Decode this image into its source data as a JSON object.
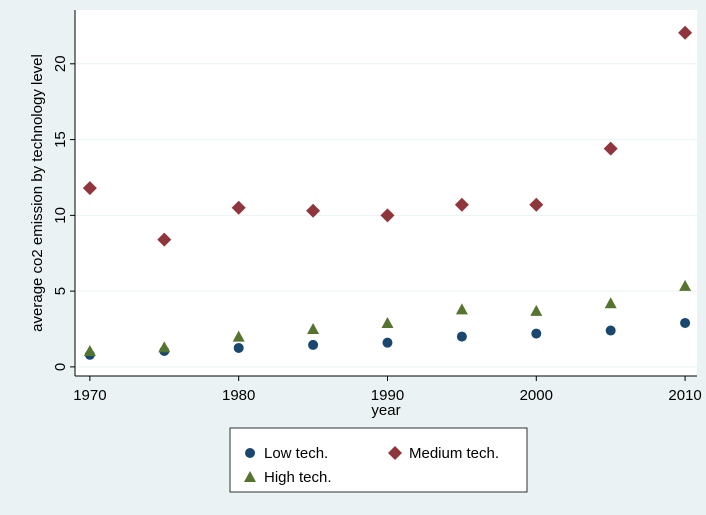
{
  "chart_data": {
    "type": "scatter",
    "x_label": "year",
    "y_label": "average co2 emission by technology level",
    "x": [
      1970,
      1975,
      1980,
      1985,
      1990,
      1995,
      2000,
      2005,
      2010
    ],
    "series": [
      {
        "name": "Low tech.",
        "color": "#1a476f",
        "marker": "circle",
        "values": [
          0.8,
          1.05,
          1.25,
          1.45,
          1.6,
          2.0,
          2.2,
          2.4,
          2.9
        ]
      },
      {
        "name": "Medium tech.",
        "color": "#90353b",
        "marker": "diamond",
        "values": [
          11.8,
          8.4,
          10.5,
          10.3,
          10.0,
          10.7,
          10.7,
          14.4,
          22.05
        ]
      },
      {
        "name": "High tech.",
        "color": "#55752f",
        "marker": "triangle",
        "values": [
          1.05,
          1.3,
          2.0,
          2.5,
          2.9,
          3.8,
          3.7,
          4.2,
          5.35
        ]
      }
    ],
    "xlim": [
      1969,
      2010.8
    ],
    "xticks": [
      1970,
      1980,
      1990,
      2000,
      2010
    ],
    "ylim": [
      -0.6,
      23.55
    ],
    "yticks": [
      0,
      5,
      10,
      15,
      20
    ],
    "grid": true
  }
}
